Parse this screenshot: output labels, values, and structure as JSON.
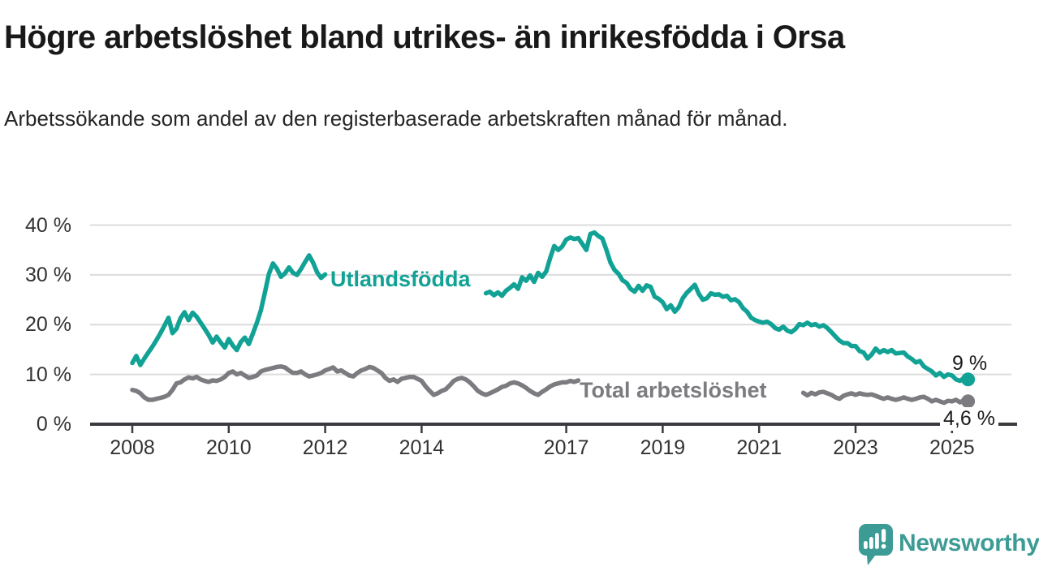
{
  "header": {
    "title": "Högre arbetslöshet bland utrikes- än inrikesfödda i Orsa",
    "subtitle": "Arbetssökande som andel av den registerbaserade arbetskraften månad för månad."
  },
  "footer": {
    "brand": "Newsworthy"
  },
  "colors": {
    "foreign_born_line": "#12a295",
    "total_line": "#7b7b80",
    "axis": "#3a3a40",
    "gridline": "#dcdcdc",
    "brand_teal": "#3d9b95"
  },
  "chart_data": {
    "type": "line",
    "title": "Högre arbetslöshet bland utrikes- än inrikesfödda i Orsa",
    "subtitle": "Arbetssökande som andel av den registerbaserade arbetskraften månad för månad.",
    "xlabel": "",
    "ylabel": "%",
    "ylim": [
      0,
      42
    ],
    "grid": "horizontal",
    "legend_position": "inline-labels",
    "frequency": "monthly",
    "x_start": "2008-01",
    "x_end": "2025-05",
    "note": "null values = segment hidden behind inline series label in the original graphic",
    "y_ticks": [
      {
        "label": "40 %",
        "value": 40
      },
      {
        "label": "30 %",
        "value": 30
      },
      {
        "label": "20 %",
        "value": 20
      },
      {
        "label": "10 %",
        "value": 10
      },
      {
        "label": "0 %",
        "value": 0
      }
    ],
    "x_ticks": [
      {
        "label": "2008",
        "year": 2008
      },
      {
        "label": "2010",
        "year": 2010
      },
      {
        "label": "2012",
        "year": 2012
      },
      {
        "label": "2014",
        "year": 2014
      },
      {
        "label": "2017",
        "year": 2017
      },
      {
        "label": "2019",
        "year": 2019
      },
      {
        "label": "2021",
        "year": 2021
      },
      {
        "label": "2023",
        "year": 2023
      },
      {
        "label": "2025",
        "year": 2025
      }
    ],
    "series": [
      {
        "name": "Utlandsfödda",
        "inline_label": "Utlandsfödda",
        "end_label": "9 %",
        "end_value": 9,
        "color": "#12a295",
        "values": [
          12.3,
          13.7,
          11.9,
          13.2,
          14.4,
          15.6,
          16.9,
          18.3,
          19.8,
          21.4,
          18.3,
          19.2,
          21.3,
          22.5,
          20.9,
          22.4,
          21.6,
          20.4,
          19.2,
          17.9,
          16.4,
          17.6,
          16.4,
          15.4,
          17.1,
          15.8,
          14.9,
          16.5,
          17.4,
          16.1,
          18.2,
          20.4,
          22.9,
          26.5,
          30.2,
          32.3,
          31.2,
          29.6,
          30.3,
          31.5,
          30.4,
          30.0,
          31.2,
          32.6,
          33.9,
          32.4,
          30.5,
          29.4,
          30.1,
          null,
          null,
          null,
          null,
          null,
          null,
          null,
          null,
          null,
          null,
          null,
          null,
          null,
          null,
          null,
          null,
          null,
          null,
          null,
          null,
          null,
          null,
          null,
          null,
          null,
          null,
          null,
          null,
          null,
          null,
          null,
          null,
          null,
          null,
          null,
          null,
          null,
          null,
          null,
          26.3,
          26.6,
          25.9,
          26.5,
          25.8,
          26.8,
          27.4,
          28.1,
          27.2,
          29.5,
          28.8,
          29.9,
          28.6,
          30.4,
          29.6,
          30.7,
          33.4,
          35.8,
          35.0,
          35.7,
          37.1,
          37.5,
          37.2,
          37.4,
          36.2,
          35.0,
          38.2,
          38.5,
          37.8,
          37.3,
          35.0,
          32.5,
          31.0,
          30.2,
          28.9,
          28.4,
          27.2,
          26.6,
          27.8,
          26.8,
          27.9,
          27.6,
          25.6,
          25.2,
          24.5,
          23.1,
          23.9,
          22.6,
          23.5,
          25.3,
          26.4,
          27.2,
          28.0,
          26.2,
          25.0,
          25.3,
          26.3,
          26.0,
          26.1,
          25.6,
          25.8,
          24.9,
          25.1,
          24.5,
          23.3,
          22.6,
          21.4,
          20.9,
          20.6,
          20.4,
          20.6,
          20.1,
          19.3,
          19.0,
          19.6,
          18.8,
          18.5,
          19.1,
          20.1,
          19.9,
          20.4,
          19.9,
          20.1,
          19.6,
          19.9,
          19.3,
          18.5,
          17.6,
          16.8,
          16.3,
          16.3,
          15.7,
          15.7,
          14.7,
          14.4,
          13.2,
          14.0,
          15.2,
          14.4,
          14.9,
          14.5,
          14.9,
          14.2,
          14.3,
          14.4,
          13.6,
          13.1,
          12.4,
          12.7,
          11.6,
          11.1,
          10.6,
          9.8,
          10.3,
          9.5,
          10.0,
          9.8,
          9.0,
          8.7,
          9.3,
          9.0
        ]
      },
      {
        "name": "Total arbetslöshet",
        "inline_label": "Total arbetslöshet",
        "end_label": "4,6 %",
        "end_value": 4.6,
        "color": "#7b7b80",
        "values": [
          6.9,
          6.7,
          6.2,
          5.4,
          4.9,
          4.9,
          5.1,
          5.3,
          5.5,
          5.9,
          6.9,
          8.2,
          8.4,
          9.0,
          9.4,
          9.2,
          9.5,
          9.0,
          8.7,
          8.5,
          8.8,
          8.7,
          9.0,
          9.5,
          10.3,
          10.6,
          10.0,
          10.3,
          9.8,
          9.3,
          9.5,
          9.8,
          10.6,
          10.9,
          11.1,
          11.3,
          11.5,
          11.6,
          11.4,
          10.8,
          10.3,
          10.3,
          10.6,
          10.0,
          9.6,
          9.8,
          10.0,
          10.3,
          10.8,
          11.1,
          11.4,
          10.6,
          10.8,
          10.3,
          9.8,
          9.6,
          10.3,
          10.8,
          11.1,
          11.5,
          11.3,
          10.8,
          10.3,
          9.3,
          8.7,
          9.0,
          8.5,
          9.1,
          9.3,
          9.5,
          9.5,
          9.1,
          8.7,
          7.6,
          6.7,
          5.9,
          6.2,
          6.7,
          7.0,
          7.8,
          8.7,
          9.1,
          9.3,
          9.0,
          8.4,
          7.6,
          6.7,
          6.2,
          5.9,
          6.2,
          6.6,
          7.0,
          7.5,
          7.7,
          8.2,
          8.4,
          8.2,
          7.8,
          7.3,
          6.7,
          6.2,
          5.9,
          6.5,
          7.0,
          7.6,
          8.0,
          8.2,
          8.4,
          8.4,
          8.7,
          8.5,
          8.8,
          null,
          null,
          null,
          null,
          null,
          null,
          null,
          null,
          null,
          null,
          null,
          null,
          null,
          null,
          null,
          null,
          null,
          null,
          null,
          null,
          null,
          null,
          null,
          null,
          null,
          null,
          null,
          null,
          null,
          null,
          null,
          null,
          null,
          null,
          null,
          null,
          null,
          null,
          null,
          null,
          null,
          null,
          null,
          null,
          null,
          null,
          null,
          null,
          null,
          null,
          null,
          null,
          null,
          null,
          null,
          6.3,
          5.8,
          6.3,
          6.0,
          6.4,
          6.5,
          6.2,
          5.9,
          5.4,
          5.1,
          5.7,
          6.0,
          6.2,
          5.9,
          6.2,
          6.0,
          5.9,
          6.0,
          5.7,
          5.4,
          5.1,
          5.4,
          5.1,
          4.9,
          5.1,
          5.4,
          5.1,
          4.9,
          5.1,
          5.4,
          5.5,
          5.1,
          4.6,
          4.9,
          4.6,
          4.3,
          4.7,
          4.6,
          4.9,
          4.4,
          4.8,
          4.6
        ]
      }
    ]
  }
}
